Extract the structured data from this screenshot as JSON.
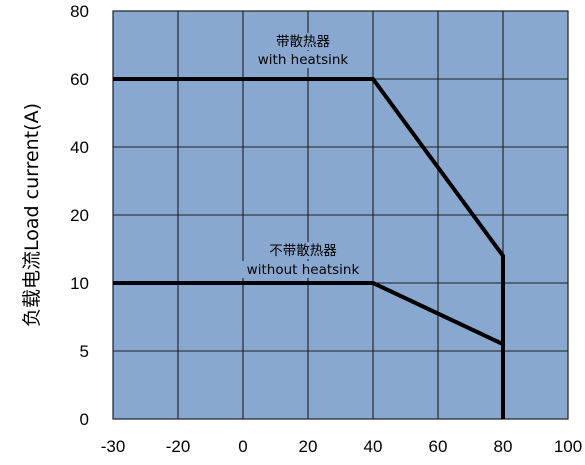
{
  "chart_data": {
    "type": "line",
    "title": "",
    "xlabel": "",
    "ylabel": "负载电流Load current(A)",
    "x_ticks": [
      "-30",
      "-20",
      "0",
      "20",
      "40",
      "60",
      "80",
      "100"
    ],
    "y_ticks": [
      "0",
      "5",
      "10",
      "20",
      "40",
      "60",
      "80"
    ],
    "grid": true,
    "colors": {
      "plot_bg": "#88a8d0",
      "grid": "#1f1f1f",
      "line": "#000000"
    },
    "series": [
      {
        "label_lines": [
          "带散热器",
          "with heatsink"
        ],
        "x": [
          "-30",
          "40",
          "80",
          "80"
        ],
        "y": [
          "60",
          "60",
          "14",
          "0"
        ]
      },
      {
        "label_lines": [
          "不带散热器",
          "without heatsink"
        ],
        "x": [
          "-30",
          "40",
          "80",
          "80"
        ],
        "y": [
          "10",
          "10",
          "5.5",
          "0"
        ]
      }
    ]
  }
}
